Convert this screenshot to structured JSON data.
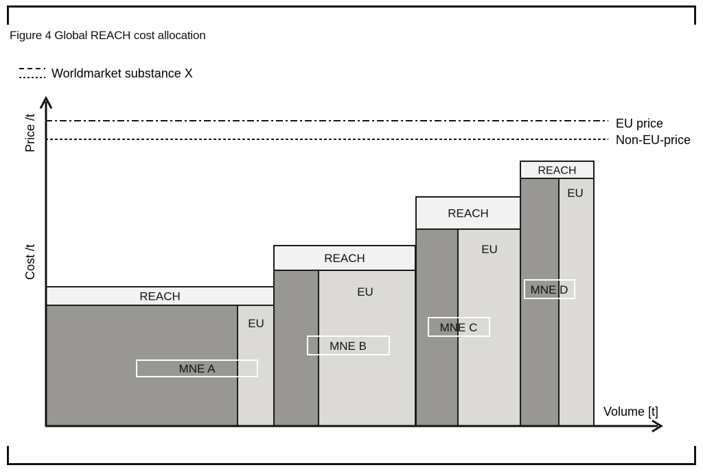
{
  "figure": {
    "title": "Figure 4 Global REACH cost allocation"
  },
  "legend": {
    "label": "Worldmarket substance X"
  },
  "axes": {
    "y_upper_label": "Price /t",
    "y_lower_label": "Cost /t",
    "x_label": "Volume [t]"
  },
  "price_lines": {
    "eu_label": "EU price",
    "non_eu_label": "Non-EU-price"
  },
  "companies": [
    {
      "name": "MNE A",
      "reach_label": "REACH",
      "eu_label": "EU"
    },
    {
      "name": "MNE B",
      "reach_label": "REACH",
      "eu_label": "EU"
    },
    {
      "name": "MNE C",
      "reach_label": "REACH",
      "eu_label": "EU"
    },
    {
      "name": "MNE D",
      "reach_label": "REACH",
      "eu_label": "EU"
    }
  ],
  "colors": {
    "non_eu_block": "#999794",
    "eu_block": "#dbdad7",
    "reach_block": "#f2f2f2",
    "outline": "#1a1a1a"
  }
}
